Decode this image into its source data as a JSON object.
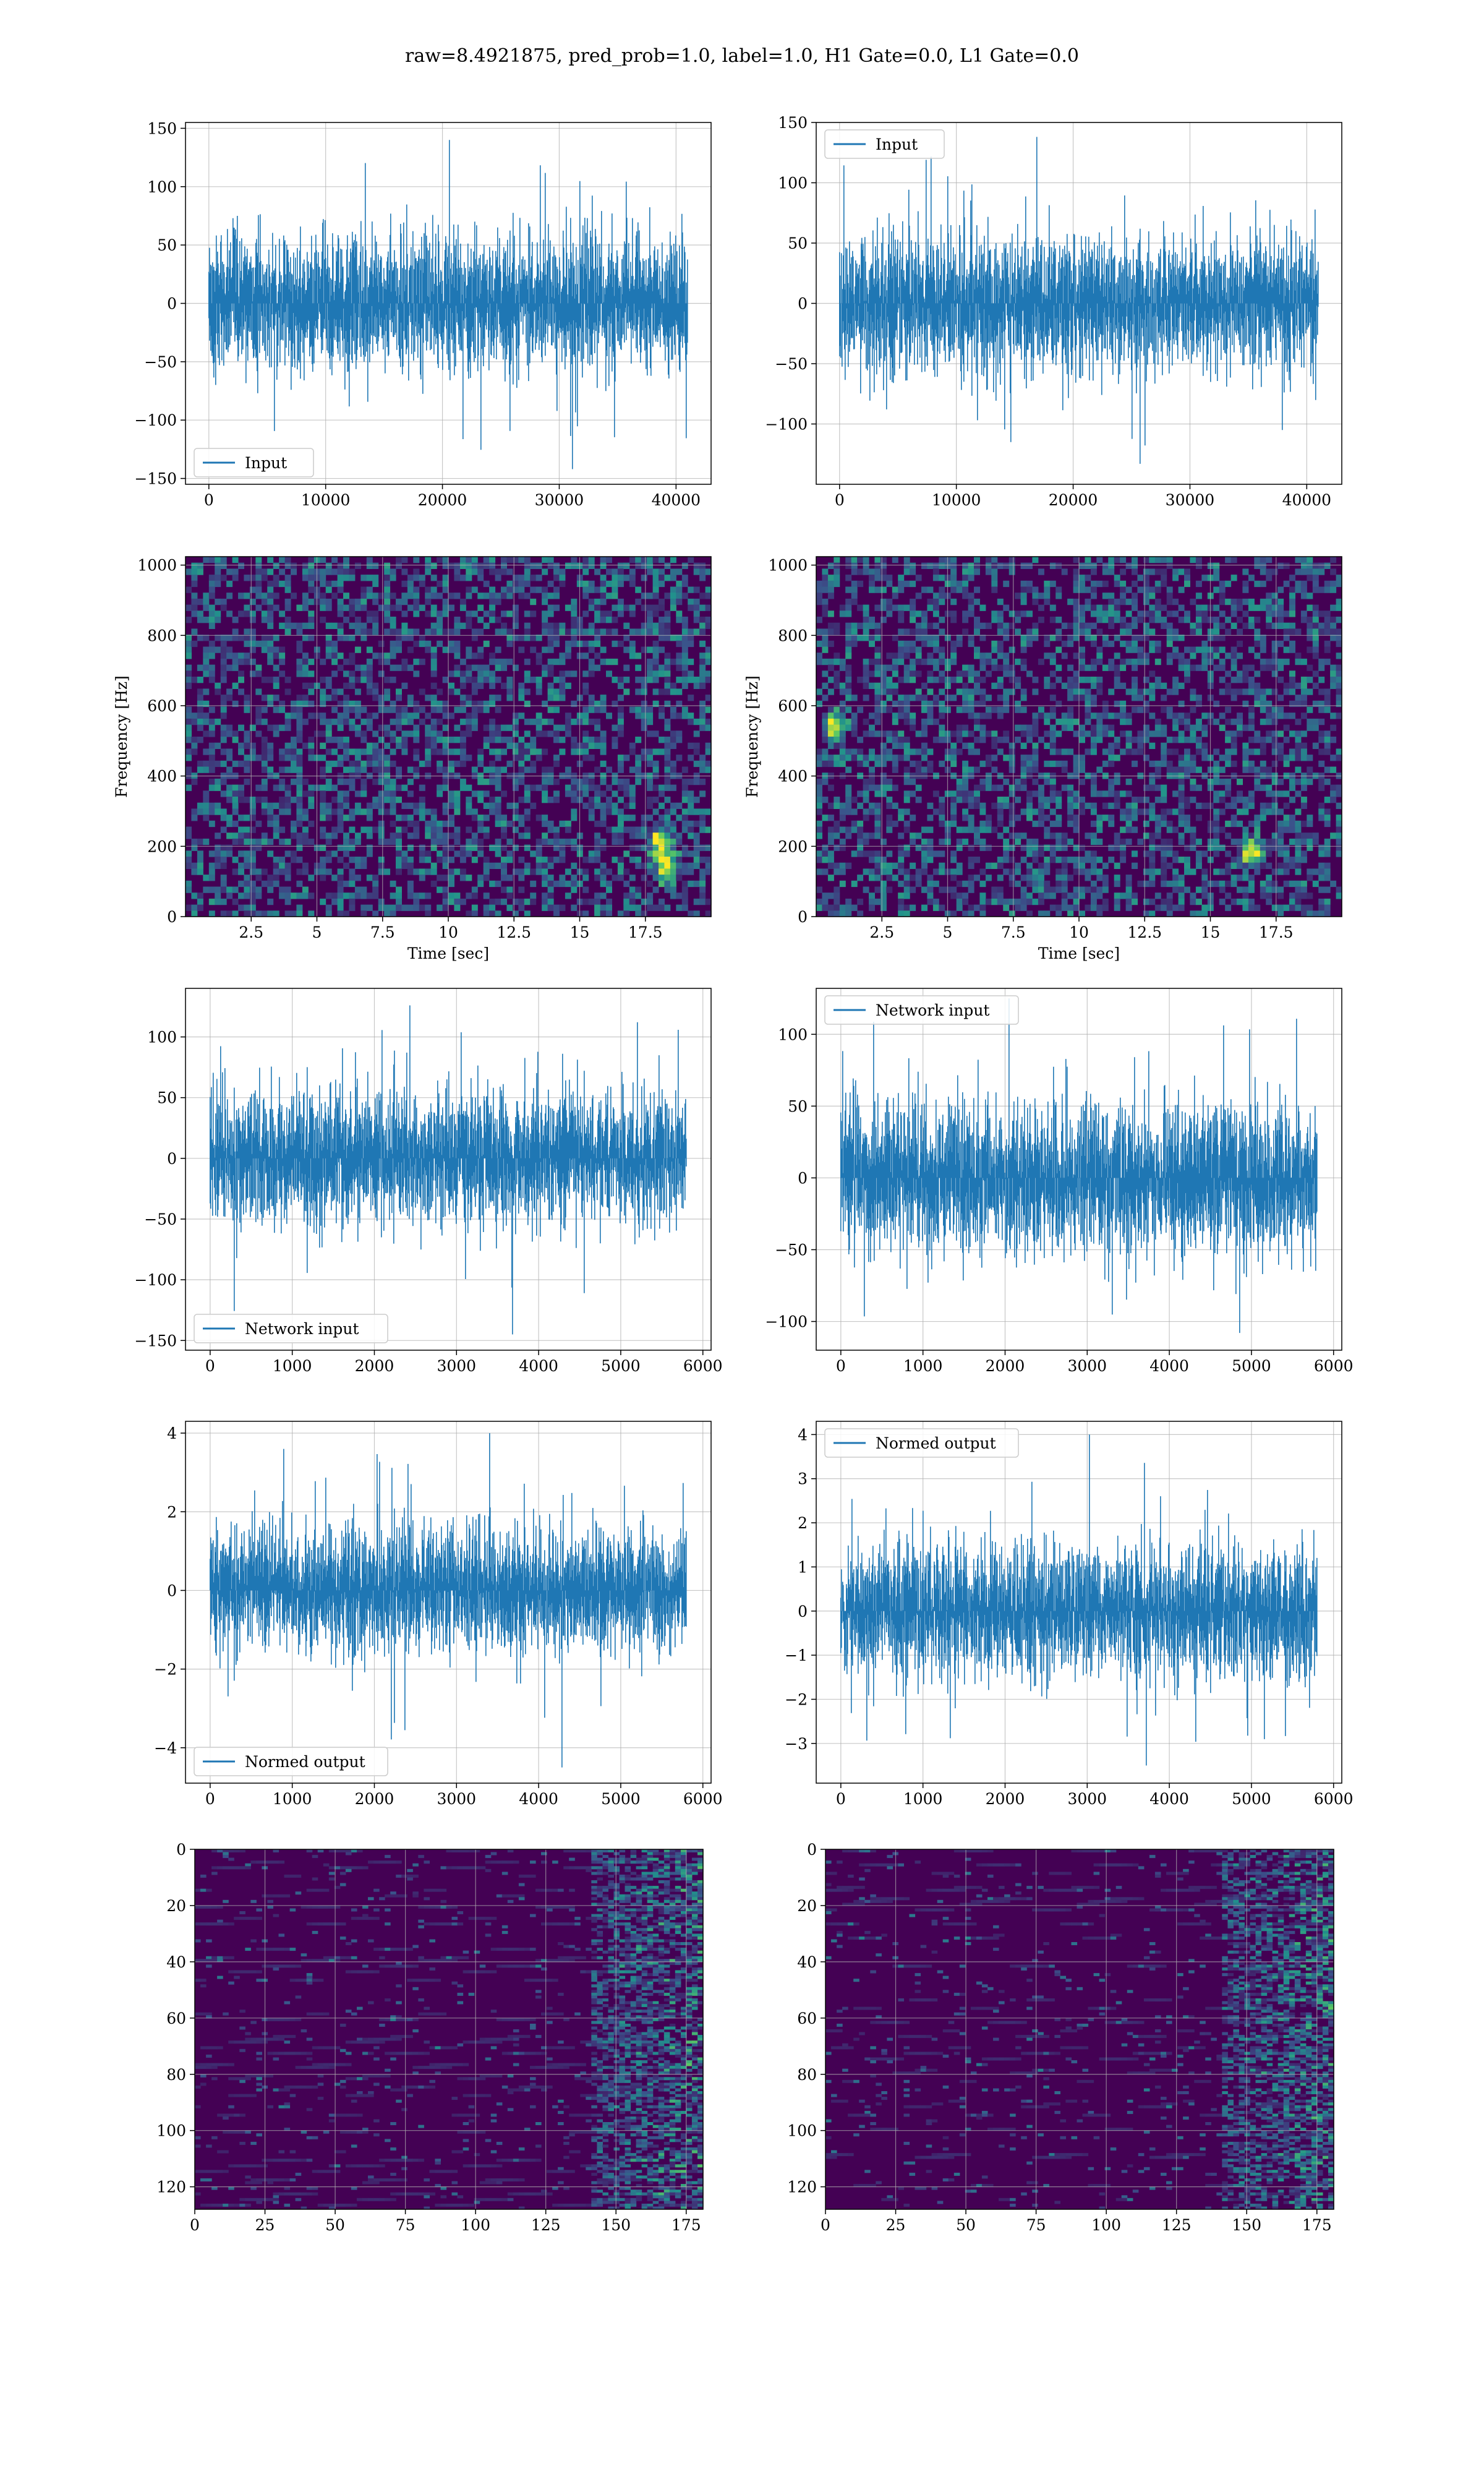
{
  "figure": {
    "title": "raw=8.4921875, pred_prob=1.0, label=1.0, H1 Gate=0.0, L1 Gate=0.0"
  },
  "colors": {
    "line": "#1f77b4",
    "grid": "#b0b0b0",
    "heat_low": "#440154",
    "heat_mid": "#21908c",
    "heat_high": "#fde725"
  },
  "chart_data": [
    {
      "type": "line",
      "series": [
        {
          "name": "Input",
          "points": 40960,
          "amplitude": 28,
          "peak_max": 140,
          "peak_min": -142
        }
      ],
      "xlim": [
        -2000,
        43000
      ],
      "ylim": [
        -155,
        155
      ],
      "xticks": [
        0,
        10000,
        20000,
        30000,
        40000
      ],
      "yticks": [
        -150,
        -100,
        -50,
        0,
        50,
        100,
        150
      ],
      "legend": "lower-left",
      "grid": true
    },
    {
      "type": "line",
      "series": [
        {
          "name": "Input",
          "points": 40960,
          "amplitude": 27,
          "peak_max": 138,
          "peak_min": -133
        }
      ],
      "xlim": [
        -2000,
        43000
      ],
      "ylim": [
        -150,
        150
      ],
      "xticks": [
        0,
        10000,
        20000,
        30000,
        40000
      ],
      "yticks": [
        -100,
        -50,
        0,
        50,
        100,
        150
      ],
      "legend": "upper-left",
      "grid": true
    },
    {
      "type": "heatmap",
      "xlabel": "Time [sec]",
      "ylabel": "Frequency [Hz]",
      "xlim": [
        0,
        20
      ],
      "ylim": [
        0,
        1024
      ],
      "xticks": [
        2.5,
        5.0,
        7.5,
        10.0,
        12.5,
        15.0,
        17.5
      ],
      "yticks": [
        0,
        200,
        400,
        600,
        800,
        1000
      ],
      "colormap": "viridis",
      "grid": true,
      "hotspots": [
        {
          "t": 18.2,
          "f": 150
        },
        {
          "t": 18.0,
          "f": 220
        }
      ]
    },
    {
      "type": "heatmap",
      "xlabel": "Time [sec]",
      "ylabel": "Frequency [Hz]",
      "xlim": [
        0,
        20
      ],
      "ylim": [
        0,
        1024
      ],
      "xticks": [
        2.5,
        5.0,
        7.5,
        10.0,
        12.5,
        15.0,
        17.5
      ],
      "yticks": [
        0,
        200,
        400,
        600,
        800,
        1000
      ],
      "colormap": "viridis",
      "grid": true,
      "hotspots": [
        {
          "t": 0.6,
          "f": 550
        },
        {
          "t": 16.5,
          "f": 190
        }
      ]
    },
    {
      "type": "line",
      "series": [
        {
          "name": "Network input",
          "points": 5800,
          "amplitude": 26,
          "peak_max": 126,
          "peak_min": -145
        }
      ],
      "xlim": [
        -300,
        6100
      ],
      "ylim": [
        -158,
        140
      ],
      "xticks": [
        0,
        1000,
        2000,
        3000,
        4000,
        5000,
        6000
      ],
      "yticks": [
        -150,
        -100,
        -50,
        0,
        50,
        100
      ],
      "legend": "lower-left",
      "grid": true
    },
    {
      "type": "line",
      "series": [
        {
          "name": "Network input",
          "points": 5800,
          "amplitude": 25,
          "peak_max": 125,
          "peak_min": -108
        }
      ],
      "xlim": [
        -300,
        6100
      ],
      "ylim": [
        -120,
        132
      ],
      "xticks": [
        0,
        1000,
        2000,
        3000,
        4000,
        5000,
        6000
      ],
      "yticks": [
        -100,
        -50,
        0,
        50,
        100
      ],
      "legend": "upper-left",
      "grid": true
    },
    {
      "type": "line",
      "series": [
        {
          "name": "Normed output",
          "points": 5800,
          "amplitude": 0.75,
          "peak_max": 4.0,
          "peak_min": -4.5
        }
      ],
      "xlim": [
        -300,
        6100
      ],
      "ylim": [
        -4.9,
        4.3
      ],
      "xticks": [
        0,
        1000,
        2000,
        3000,
        4000,
        5000,
        6000
      ],
      "yticks": [
        -4,
        -2,
        0,
        2,
        4
      ],
      "legend": "lower-left",
      "grid": true
    },
    {
      "type": "line",
      "series": [
        {
          "name": "Normed output",
          "points": 5800,
          "amplitude": 0.72,
          "peak_max": 4.0,
          "peak_min": -3.5
        }
      ],
      "xlim": [
        -300,
        6100
      ],
      "ylim": [
        -3.9,
        4.3
      ],
      "xticks": [
        0,
        1000,
        2000,
        3000,
        4000,
        5000,
        6000
      ],
      "yticks": [
        -3,
        -2,
        -1,
        0,
        1,
        2,
        3,
        4
      ],
      "legend": "upper-left",
      "grid": true
    },
    {
      "type": "heatmap",
      "xlim": [
        0,
        181
      ],
      "ylim": [
        128,
        0
      ],
      "xticks": [
        0,
        25,
        50,
        75,
        100,
        125,
        150,
        175
      ],
      "yticks": [
        0,
        20,
        40,
        60,
        80,
        100,
        120
      ],
      "colormap": "viridis",
      "grid": true,
      "y_inverted": true
    },
    {
      "type": "heatmap",
      "xlim": [
        0,
        181
      ],
      "ylim": [
        128,
        0
      ],
      "xticks": [
        0,
        25,
        50,
        75,
        100,
        125,
        150,
        175
      ],
      "yticks": [
        0,
        20,
        40,
        60,
        80,
        100,
        120
      ],
      "colormap": "viridis",
      "grid": true,
      "y_inverted": true
    }
  ]
}
